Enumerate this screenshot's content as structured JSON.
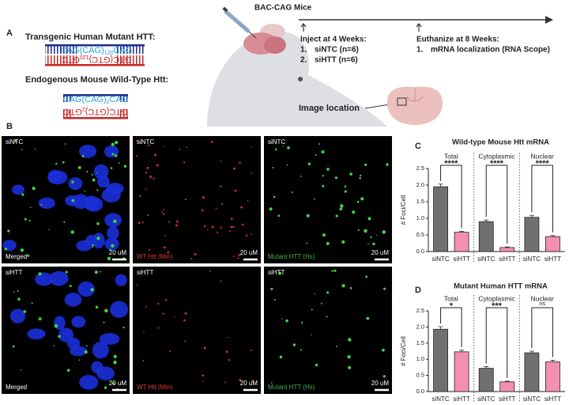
{
  "panel_a": {
    "label": "A",
    "transgene_title": "Transgenic Human Mutant HTT:",
    "transgene_top": [
      "CAG(CAG)",
      "120",
      "CAG"
    ],
    "transgene_bottom": [
      "GTC(GTC)",
      "120",
      "GTC"
    ],
    "endogenous_title": "Endogenous Mouse Wild-Type Htt:",
    "endogenous_top": [
      "CAG(CAG)",
      "2",
      "CAG"
    ],
    "endogenous_bottom": [
      "GTC(GTC)",
      "2",
      "GTC"
    ],
    "mice": "BAC-CAG Mice",
    "inject_title": "Inject at 4 Weeks:",
    "inject_items": [
      {
        "num": "1.",
        "text": "siNTC (n=6)"
      },
      {
        "num": "2.",
        "text": "siHTT (n=6)"
      }
    ],
    "euthanize_title": "Euthanize at 8 Weeks:",
    "euthanize_items": [
      {
        "num": "1.",
        "text": "mRNA localization (RNA Scope)"
      }
    ],
    "image_location": "Image location"
  },
  "panel_b": {
    "label": "B",
    "rows": [
      {
        "condition": "siNTC",
        "channels": [
          "Merged",
          "WT Htt (Mm)",
          "Mutant HTT (Hs)"
        ]
      },
      {
        "condition": "siHTT",
        "channels": [
          "Merged",
          "WT Htt (Mm)",
          "Mutant HTT (Hs)"
        ]
      }
    ],
    "scale_bar": "20 uM"
  },
  "chart_data": [
    {
      "type": "bar",
      "panel_label": "C",
      "title": "Wild-type Mouse Htt mRNA",
      "y_label": "# Foci/Cell",
      "groups": [
        "Total",
        "Cytoplasmic",
        "Nuclear"
      ],
      "significance": [
        "****",
        "****",
        "****"
      ],
      "categories": [
        "siNTC",
        "siHTT",
        "siNTC",
        "siHTT",
        "siNTC",
        "siHTT"
      ],
      "values": [
        1.95,
        0.58,
        0.9,
        0.12,
        1.03,
        0.45
      ],
      "errors": [
        0.08,
        0.03,
        0.05,
        0.02,
        0.06,
        0.03
      ],
      "colors": [
        "#707070",
        "#f48fb1",
        "#707070",
        "#f48fb1",
        "#707070",
        "#f48fb1"
      ],
      "ylim": [
        0,
        2.5
      ],
      "yticks": [
        {
          "value": 0,
          "label": "0.0"
        },
        0.5,
        {
          "value": 1,
          "label": "1.0"
        },
        1.5,
        {
          "value": 2,
          "label": "2.0"
        },
        2.5
      ]
    },
    {
      "type": "bar",
      "panel_label": "D",
      "title": "Mutant Human HTT mRNA",
      "y_label": "# Foci/Cell",
      "groups": [
        "Total",
        "Cytoplasmic",
        "Nuclear"
      ],
      "significance": [
        "*",
        "***",
        "ns"
      ],
      "categories": [
        "siNTC",
        "siHTT",
        "siNTC",
        "siHTT",
        "siNTC",
        "siHTT"
      ],
      "values": [
        1.93,
        1.23,
        0.72,
        0.3,
        1.2,
        0.92
      ],
      "errors": [
        0.08,
        0.05,
        0.05,
        0.02,
        0.05,
        0.05
      ],
      "colors": [
        "#707070",
        "#f48fb1",
        "#707070",
        "#f48fb1",
        "#707070",
        "#f48fb1"
      ],
      "ylim": [
        0,
        2.5
      ],
      "yticks": [
        {
          "value": 0,
          "label": "0.0"
        },
        0.5,
        {
          "value": 1,
          "label": "1.0"
        },
        1.5,
        {
          "value": 2,
          "label": "2.0"
        },
        2.5
      ]
    }
  ]
}
